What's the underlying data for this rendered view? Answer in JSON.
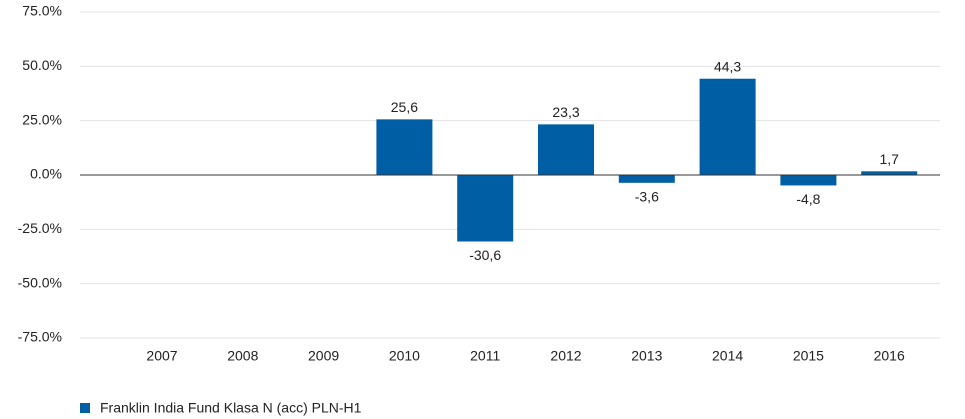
{
  "chart_data": {
    "type": "bar",
    "categories": [
      "2007",
      "2008",
      "2009",
      "2010",
      "2011",
      "2012",
      "2013",
      "2014",
      "2015",
      "2016"
    ],
    "series": [
      {
        "name": "Franklin India Fund Klasa N (acc) PLN-H1",
        "color": "#005ea5",
        "values": [
          null,
          null,
          null,
          25.6,
          -30.6,
          23.3,
          -3.6,
          44.3,
          -4.8,
          1.7
        ],
        "value_labels": [
          null,
          null,
          null,
          "25,6",
          "-30,6",
          "23,3",
          "-3,6",
          "44,3",
          "-4,8",
          "1,7"
        ]
      }
    ],
    "ylim": [
      -75,
      75
    ],
    "yticks": [
      {
        "value": -75,
        "label": "-75.0%"
      },
      {
        "value": -50,
        "label": "-50.0%"
      },
      {
        "value": -25,
        "label": "-25.0%"
      },
      {
        "value": 0,
        "label": "0.0%"
      },
      {
        "value": 25,
        "label": "25.0%"
      },
      {
        "value": 50,
        "label": "50.0%"
      },
      {
        "value": 75,
        "label": "75.0%"
      }
    ],
    "grid": true
  }
}
